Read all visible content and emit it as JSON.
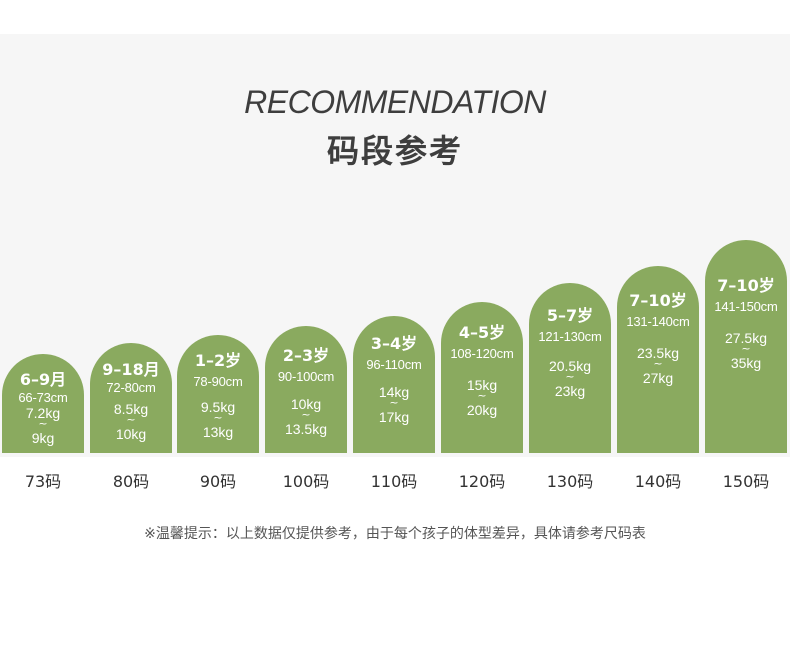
{
  "header": {
    "title_en": "RECOMMENDATION",
    "title_cn": "码段参考"
  },
  "colors": {
    "bar": "#8aaa5f",
    "panel": "#f6f6f6",
    "text": "#333333"
  },
  "sizes": [
    {
      "age": "6–9月",
      "height": "66-73cm",
      "weight_min": "7.2kg",
      "weight_max": "9kg",
      "label": "73码"
    },
    {
      "age": "9–18月",
      "height": "72-80cm",
      "weight_min": "8.5kg",
      "weight_max": "10kg",
      "label": "80码"
    },
    {
      "age": "1–2岁",
      "height": "78-90cm",
      "weight_min": "9.5kg",
      "weight_max": "13kg",
      "label": "90码"
    },
    {
      "age": "2–3岁",
      "height": "90-100cm",
      "weight_min": "10kg",
      "weight_max": "13.5kg",
      "label": "100码"
    },
    {
      "age": "3–4岁",
      "height": "96-110cm",
      "weight_min": "14kg",
      "weight_max": "17kg",
      "label": "110码"
    },
    {
      "age": "4–5岁",
      "height": "108-120cm",
      "weight_min": "15kg",
      "weight_max": "20kg",
      "label": "120码"
    },
    {
      "age": "5–7岁",
      "height": "121-130cm",
      "weight_min": "20.5kg",
      "weight_max": "23kg",
      "label": "130码"
    },
    {
      "age": "7–10岁",
      "height": "131-140cm",
      "weight_min": "23.5kg",
      "weight_max": "27kg",
      "label": "140码"
    },
    {
      "age": "7–10岁",
      "height": "141-150cm",
      "weight_min": "27.5kg",
      "weight_max": "35kg",
      "label": "150码"
    }
  ],
  "tilde": "~",
  "footer": {
    "tip": "※温馨提示：以上数据仅提供参考，由于每个孩子的体型差异，具体请参考尺码表"
  }
}
